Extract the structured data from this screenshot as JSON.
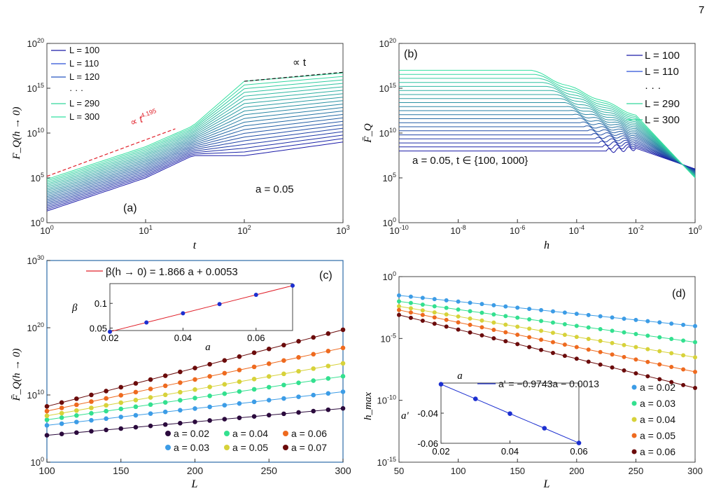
{
  "page_number": "7",
  "chart_data": [
    {
      "panel": "(a)",
      "type": "line",
      "xlabel": "t",
      "ylabel": "F_Q(h → 0)",
      "xscale": "log",
      "yscale": "log",
      "xlim": [
        1,
        1000
      ],
      "ylim": [
        1,
        1e+20
      ],
      "x_ticks": [
        "10^0",
        "10^1",
        "10^2",
        "10^3"
      ],
      "y_ticks": [
        "10^0",
        "10^5",
        "10^10",
        "10^15",
        "10^20"
      ],
      "legend_entries": [
        "L = 100",
        "L = 110",
        "L = 120",
        "· · ·",
        "L = 290",
        "L = 300"
      ],
      "legend_position": "top-left",
      "annotations": [
        "∝ t^4.195",
        "∝ t",
        "a = 0.05"
      ],
      "L_values": [
        100,
        300
      ],
      "curve_count": 21,
      "series_L100": {
        "x": [
          1,
          10,
          30,
          100,
          1000
        ],
        "y": [
          20.0,
          100000.0,
          30000000.0,
          30000000.0,
          1000000000.0
        ]
      },
      "series_L300": {
        "x": [
          1,
          10,
          30,
          100,
          1000
        ],
        "y": [
          70000.0,
          300000000.0,
          60000000000.0,
          6000000000000000.0,
          5e+16
        ]
      },
      "guide_t4195": {
        "x": [
          1,
          20
        ],
        "y": [
          150000.0,
          30000000000.0
        ]
      },
      "guide_t": {
        "x": [
          100,
          1000
        ],
        "y": [
          6000000000000000.0,
          6e+16
        ]
      }
    },
    {
      "panel": "(b)",
      "type": "line",
      "xlabel": "h",
      "ylabel": "F̄_Q",
      "xscale": "log",
      "yscale": "log",
      "xlim": [
        1e-10,
        1
      ],
      "ylim": [
        1,
        1e+20
      ],
      "x_ticks": [
        "10^-10",
        "10^-8",
        "10^-6",
        "10^-4",
        "10^-2",
        "10^0"
      ],
      "y_ticks": [
        "10^0",
        "10^5",
        "10^10",
        "10^15",
        "10^20"
      ],
      "legend_entries": [
        "L = 100",
        "L = 110",
        "· · ·",
        "L = 290",
        "L = 300"
      ],
      "legend_position": "top-right",
      "annotations": [
        "a = 0.05, t ∈ {100, 1000}"
      ],
      "curve_count": 21,
      "series_L100": {
        "plateau": 100000000.0,
        "x_end": [
          0.001,
          0.01,
          1
        ],
        "y_end": [
          200000000.0,
          200000000.0,
          1000000.0
        ]
      },
      "series_L300": {
        "plateau": 1e+17,
        "x_end": [
          3e-06,
          0.01,
          1
        ],
        "y_end": [
          1e+17,
          1000000000000.0,
          100000.0
        ]
      }
    },
    {
      "panel": "(c)",
      "type": "scatter",
      "xlabel": "L",
      "ylabel": "F̄_Q(h → 0)",
      "yscale": "log",
      "xlim": [
        100,
        300
      ],
      "ylim": [
        1,
        1e+30
      ],
      "x_ticks": [
        "100",
        "150",
        "200",
        "250",
        "300"
      ],
      "y_ticks": [
        "10^0",
        "10^10",
        "10^20",
        "10^30"
      ],
      "x": [
        100,
        110,
        120,
        130,
        140,
        150,
        160,
        170,
        180,
        190,
        200,
        210,
        220,
        230,
        240,
        250,
        260,
        270,
        280,
        290,
        300
      ],
      "series": [
        {
          "name": "a = 0.02",
          "y_start": 10000.0,
          "y_end": 100000000.0,
          "color": "#2b0a3d"
        },
        {
          "name": "a = 0.03",
          "y_start": 300000.0,
          "y_end": 30000000000.0,
          "color": "#3c9ce6"
        },
        {
          "name": "a = 0.04",
          "y_start": 2000000.0,
          "y_end": 6000000000000.0,
          "color": "#33e08f"
        },
        {
          "name": "a = 0.05",
          "y_start": 8000000.0,
          "y_end": 500000000000000.0,
          "color": "#d7d23a"
        },
        {
          "name": "a = 0.06",
          "y_start": 40000000.0,
          "y_end": 1e+17,
          "color": "#ee6a1f"
        },
        {
          "name": "a = 0.07",
          "y_start": 200000000.0,
          "y_end": 5e+19,
          "color": "#6b0b0b"
        }
      ],
      "legend_position": "bottom-right",
      "inset": {
        "xlabel": "a",
        "ylabel": "β",
        "x_ticks": [
          "0.02",
          "0.04",
          "0.06"
        ],
        "y_ticks": [
          "0.05",
          "0.1"
        ],
        "xlim": [
          0.02,
          0.07
        ],
        "ylim": [
          0.045,
          0.14
        ],
        "fit_label": "β(h → 0) = 1.866 a + 0.0053",
        "x": [
          0.02,
          0.03,
          0.04,
          0.05,
          0.06,
          0.07
        ],
        "y": [
          0.0426,
          0.0613,
          0.0799,
          0.0986,
          0.1173,
          0.1359
        ]
      }
    },
    {
      "panel": "(d)",
      "type": "scatter",
      "xlabel": "L",
      "ylabel": "h_max",
      "yscale": "log",
      "xlim": [
        50,
        300
      ],
      "ylim": [
        1e-15,
        1
      ],
      "x_ticks": [
        "50",
        "100",
        "150",
        "200",
        "250",
        "300"
      ],
      "y_ticks": [
        "10^-15",
        "10^-10",
        "10^-5",
        "10^0"
      ],
      "x": [
        50,
        60,
        70,
        80,
        90,
        100,
        110,
        120,
        130,
        140,
        150,
        160,
        170,
        180,
        190,
        200,
        210,
        220,
        230,
        240,
        250,
        260,
        270,
        280,
        290,
        300
      ],
      "series": [
        {
          "name": "a = 0.02",
          "y_start": 0.03,
          "y_end": 0.0001,
          "color": "#3c9ce6"
        },
        {
          "name": "a = 0.03",
          "y_start": 0.01,
          "y_end": 5e-06,
          "color": "#33e08f"
        },
        {
          "name": "a = 0.04",
          "y_start": 0.004,
          "y_end": 3e-07,
          "color": "#d7d23a"
        },
        {
          "name": "a = 0.05",
          "y_start": 0.002,
          "y_end": 2e-08,
          "color": "#ee6a1f"
        },
        {
          "name": "a = 0.06",
          "y_start": 0.0008,
          "y_end": 1e-09,
          "color": "#6b0b0b"
        }
      ],
      "legend_position": "bottom-right",
      "inset": {
        "xlabel": "a",
        "ylabel": "a'",
        "x_ticks": [
          "0.02",
          "0.04",
          "0.06"
        ],
        "y_ticks": [
          "-0.04",
          "-0.06"
        ],
        "xlim": [
          0.02,
          0.06
        ],
        "ylim": [
          -0.06,
          -0.02
        ],
        "fit_label": "a' = −0.9743a − 0.0013",
        "x": [
          0.02,
          0.03,
          0.04,
          0.05,
          0.06
        ],
        "y": [
          -0.0208,
          -0.0305,
          -0.0403,
          -0.05,
          -0.0598
        ]
      }
    }
  ]
}
